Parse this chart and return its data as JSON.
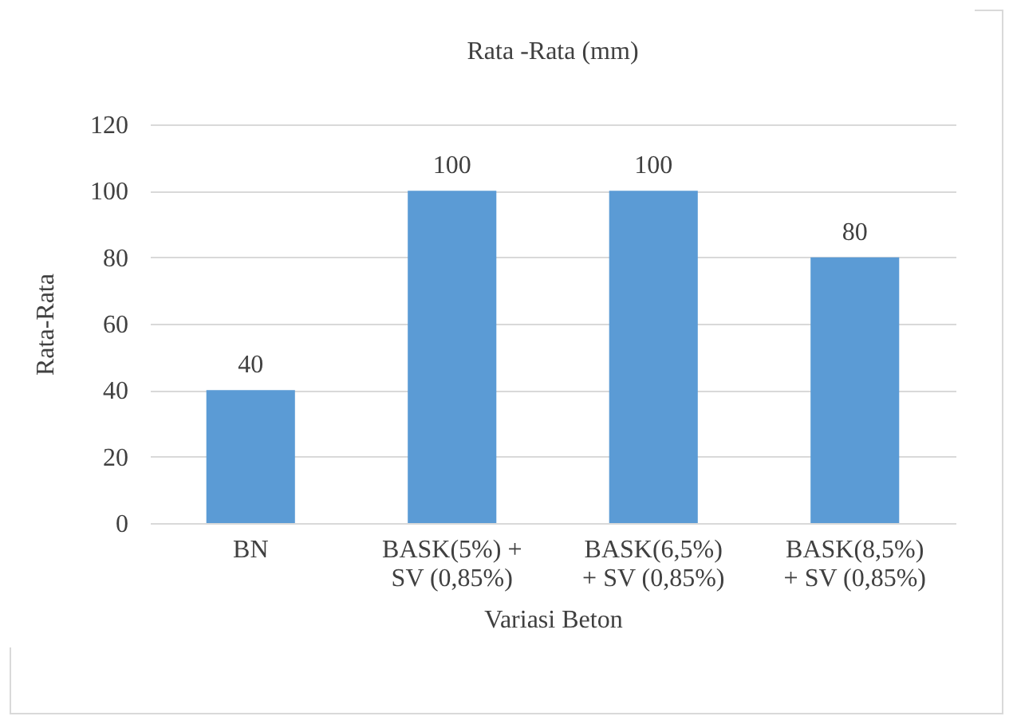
{
  "chart_data": {
    "type": "bar",
    "title": "Rata -Rata (mm)",
    "xlabel": "Variasi Beton",
    "ylabel": "Rata-Rata",
    "categories": [
      "BN",
      "BASK(5%) +\nSV (0,85%)",
      "BASK(6,5%)\n+ SV (0,85%)",
      "BASK(8,5%)\n+ SV (0,85%)"
    ],
    "values": [
      40,
      100,
      100,
      80
    ],
    "color": "#5b9bd5",
    "ylim": [
      0,
      120
    ],
    "yticks": [
      0,
      20,
      40,
      60,
      80,
      100,
      120
    ],
    "grid": "y",
    "data_labels": true
  }
}
